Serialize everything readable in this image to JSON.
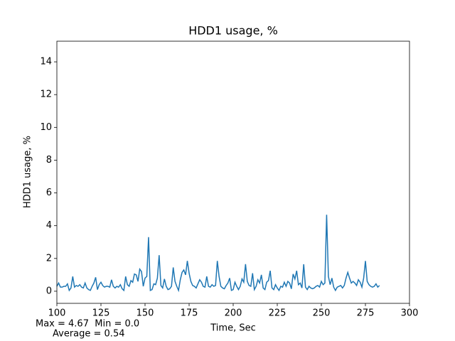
{
  "chart_data": {
    "type": "line",
    "title": "HDD1 usage, %",
    "xlabel": "Time, Sec",
    "ylabel": "HDD1 usage, %",
    "annotations": [
      "Max = 4.67  Min = 0.0",
      "Average = 0.54"
    ],
    "x": [
      100,
      101,
      102,
      103,
      104,
      105,
      106,
      107,
      108,
      109,
      110,
      111,
      112,
      113,
      114,
      115,
      116,
      117,
      118,
      119,
      120,
      121,
      122,
      123,
      124,
      125,
      126,
      127,
      128,
      129,
      130,
      131,
      132,
      133,
      134,
      135,
      136,
      137,
      138,
      139,
      140,
      141,
      142,
      143,
      144,
      145,
      146,
      147,
      148,
      149,
      150,
      151,
      152,
      153,
      154,
      155,
      156,
      157,
      158,
      159,
      160,
      161,
      162,
      163,
      164,
      165,
      166,
      167,
      168,
      169,
      170,
      171,
      172,
      173,
      174,
      175,
      176,
      177,
      178,
      179,
      180,
      181,
      182,
      183,
      184,
      185,
      186,
      187,
      188,
      189,
      190,
      191,
      192,
      193,
      194,
      195,
      196,
      197,
      198,
      199,
      200,
      201,
      202,
      203,
      204,
      205,
      206,
      207,
      208,
      209,
      210,
      211,
      212,
      213,
      214,
      215,
      216,
      217,
      218,
      219,
      220,
      221,
      222,
      223,
      224,
      225,
      226,
      227,
      228,
      229,
      230,
      231,
      232,
      233,
      234,
      235,
      236,
      237,
      238,
      239,
      240,
      241,
      242,
      243,
      244,
      245,
      246,
      247,
      248,
      249,
      250,
      251,
      252,
      253,
      254,
      255,
      256,
      257,
      258,
      259,
      260,
      261,
      262,
      263,
      264,
      265,
      266,
      267,
      268,
      269,
      270,
      271,
      272,
      273,
      274,
      275,
      276,
      277,
      278,
      279,
      280,
      281,
      282,
      283
    ],
    "series": [
      {
        "name": "HDD1 usage",
        "color": "#1f77b4",
        "values": [
          0.3,
          0.5,
          0.25,
          0.25,
          0.3,
          0.3,
          0.45,
          0.05,
          0.2,
          0.9,
          0.25,
          0.35,
          0.3,
          0.4,
          0.25,
          0.2,
          0.5,
          0.2,
          0.1,
          0.05,
          0.3,
          0.5,
          0.85,
          0.1,
          0.4,
          0.55,
          0.35,
          0.25,
          0.3,
          0.3,
          0.25,
          0.7,
          0.3,
          0.2,
          0.3,
          0.25,
          0.4,
          0.15,
          0.05,
          0.9,
          0.4,
          0.3,
          0.65,
          0.55,
          1.05,
          1.0,
          0.6,
          1.35,
          1.2,
          0.3,
          0.8,
          0.9,
          3.3,
          0.05,
          0.1,
          0.45,
          0.4,
          0.8,
          2.2,
          0.35,
          0.2,
          0.75,
          0.3,
          0.1,
          0.15,
          0.3,
          1.45,
          0.6,
          0.3,
          0.05,
          0.7,
          1.15,
          1.3,
          1.0,
          1.85,
          1.1,
          0.6,
          0.35,
          0.3,
          0.2,
          0.45,
          0.7,
          0.55,
          0.3,
          0.25,
          0.9,
          0.3,
          0.25,
          0.4,
          0.3,
          0.35,
          1.85,
          0.9,
          0.3,
          0.2,
          0.15,
          0.35,
          0.5,
          0.8,
          0.05,
          0.1,
          0.55,
          0.3,
          0.1,
          0.3,
          0.75,
          0.55,
          1.65,
          0.6,
          0.35,
          0.3,
          1.1,
          0.1,
          0.3,
          0.7,
          0.5,
          1.0,
          0.2,
          0.1,
          0.55,
          0.65,
          1.25,
          0.2,
          0.1,
          0.4,
          0.2,
          0.05,
          0.3,
          0.25,
          0.55,
          0.3,
          0.6,
          0.5,
          0.15,
          1.05,
          0.75,
          1.25,
          0.4,
          0.5,
          0.2,
          1.65,
          0.25,
          0.1,
          0.3,
          0.2,
          0.15,
          0.2,
          0.3,
          0.35,
          0.25,
          0.6,
          0.4,
          0.5,
          4.67,
          0.9,
          0.4,
          0.8,
          0.25,
          0.05,
          0.25,
          0.3,
          0.35,
          0.2,
          0.35,
          0.8,
          1.15,
          0.8,
          0.5,
          0.6,
          0.5,
          0.35,
          0.7,
          0.55,
          0.25,
          0.8,
          1.85,
          0.6,
          0.4,
          0.3,
          0.25,
          0.3,
          0.45,
          0.25,
          0.35
        ]
      }
    ],
    "xlim": [
      100,
      300
    ],
    "xticks": [
      100,
      125,
      150,
      175,
      200,
      225,
      250,
      275,
      300
    ],
    "ylim": [
      -0.74,
      15.26
    ],
    "yticks": [
      0,
      2,
      4,
      6,
      8,
      10,
      12,
      14
    ],
    "grid": false
  }
}
